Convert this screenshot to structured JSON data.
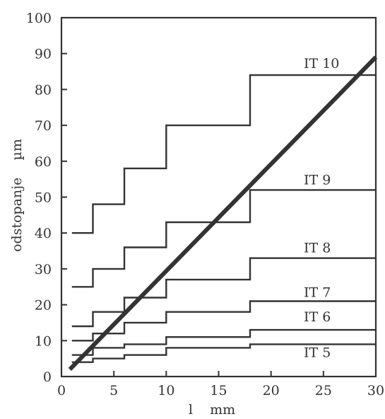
{
  "chart_data": {
    "type": "line",
    "xlabel": "l    mm",
    "ylabel": "odstopanje    µm",
    "xlim": [
      0,
      30
    ],
    "ylim": [
      0,
      100
    ],
    "xticks": [
      0,
      5,
      10,
      15,
      20,
      25,
      30
    ],
    "yticks": [
      0,
      10,
      20,
      30,
      40,
      50,
      60,
      70,
      80,
      90,
      100
    ],
    "grid": false,
    "line_color": "#333333",
    "series": [
      {
        "name": "IT 10",
        "kind": "step",
        "x": [
          1,
          3,
          3,
          6,
          6,
          10,
          10,
          18,
          18,
          30
        ],
        "y": [
          40,
          40,
          48,
          48,
          58,
          58,
          70,
          70,
          84,
          84
        ]
      },
      {
        "name": "IT 9",
        "kind": "step",
        "x": [
          1,
          3,
          3,
          6,
          6,
          10,
          10,
          18,
          18,
          30
        ],
        "y": [
          25,
          25,
          30,
          30,
          36,
          36,
          43,
          43,
          52,
          52
        ]
      },
      {
        "name": "IT 8",
        "kind": "step",
        "x": [
          1,
          3,
          3,
          6,
          6,
          10,
          10,
          18,
          18,
          30
        ],
        "y": [
          14,
          14,
          18,
          18,
          22,
          22,
          27,
          27,
          33,
          33
        ]
      },
      {
        "name": "IT 7",
        "kind": "step",
        "x": [
          1,
          3,
          3,
          6,
          6,
          10,
          10,
          18,
          18,
          30
        ],
        "y": [
          10,
          10,
          12,
          12,
          15,
          15,
          18,
          18,
          21,
          21
        ]
      },
      {
        "name": "IT 6",
        "kind": "step",
        "x": [
          1,
          3,
          3,
          6,
          6,
          10,
          10,
          18,
          18,
          30
        ],
        "y": [
          6,
          6,
          8,
          8,
          9,
          9,
          11,
          11,
          13,
          13
        ]
      },
      {
        "name": "IT 5",
        "kind": "step",
        "x": [
          1,
          3,
          3,
          6,
          6,
          10,
          10,
          18,
          18,
          30
        ],
        "y": [
          4,
          4,
          5,
          5,
          6,
          6,
          8,
          8,
          9,
          9
        ]
      },
      {
        "kind": "trend",
        "x": [
          0.8,
          30
        ],
        "y": [
          2,
          89
        ]
      }
    ]
  }
}
